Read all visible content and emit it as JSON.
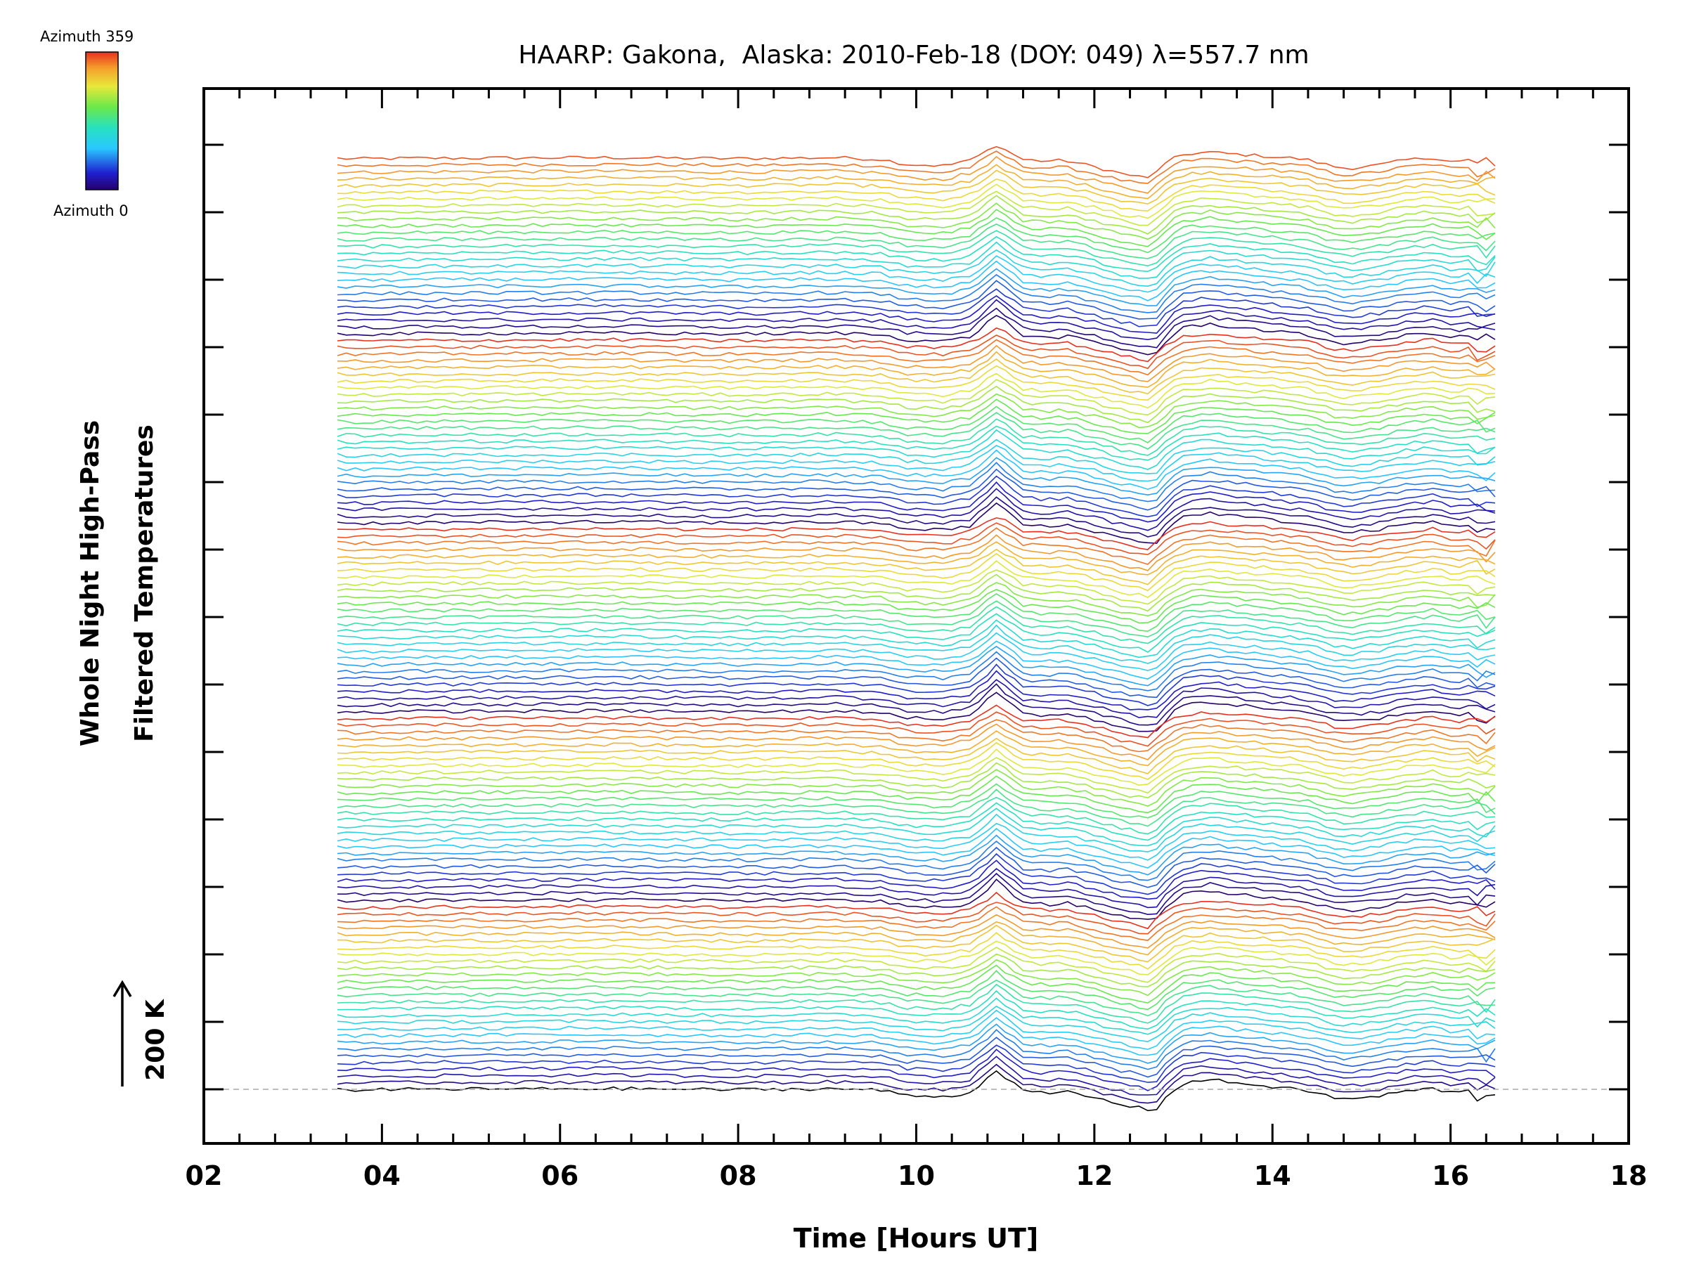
{
  "chart_data": {
    "type": "line",
    "title": "HAARP: Gakona,  Alaska: 2010-Feb-18 (DOY: 049) λ=557.7 nm",
    "xlabel": "Time [Hours UT]",
    "ylabel_line1": "Whole Night High-Pass",
    "ylabel_line2": "Filtered Temperatures",
    "xlim": [
      2,
      18
    ],
    "x_ticks": [
      "02",
      "04",
      "06",
      "08",
      "10",
      "12",
      "14",
      "16",
      "18"
    ],
    "x_tick_values": [
      2,
      4,
      6,
      8,
      10,
      12,
      14,
      16,
      18
    ],
    "scale_label": "200 K",
    "scale_value_K": 200,
    "colorbar": {
      "top_label": "Azimuth 359",
      "bottom_label": "Azimuth 0",
      "min": 0,
      "max": 359
    },
    "stack": {
      "series_count": 139,
      "offset_K": 20,
      "azimuth_period": 28,
      "zero_line": "dashed"
    },
    "time_range": [
      3.5,
      16.5
    ],
    "sample_step_hours": 0.1,
    "base_profile": {
      "x": [
        3.5,
        3.7,
        4.3,
        6.6,
        8.0,
        9.1,
        9.6,
        9.9,
        10.3,
        10.6,
        10.75,
        10.9,
        11.05,
        11.2,
        11.45,
        11.7,
        12.0,
        12.3,
        12.72,
        12.78,
        12.95,
        13.1,
        13.3,
        13.5,
        13.8,
        14.1,
        14.4,
        14.7,
        14.85,
        15.2,
        15.5,
        15.8,
        16.05,
        16.2,
        16.35,
        16.5
      ],
      "y_K": [
        0,
        -2,
        0,
        2,
        -1,
        2,
        -3,
        -18,
        -22,
        -10,
        20,
        55,
        25,
        -5,
        -12,
        -8,
        -25,
        -45,
        -65,
        -35,
        15,
        25,
        32,
        24,
        15,
        5,
        -5,
        -25,
        -30,
        -20,
        -5,
        2,
        -12,
        -5,
        -20,
        -10
      ]
    },
    "variation": {
      "peak1_factor": [
        1.05,
        0.35
      ],
      "peak2_factor": [
        0.9,
        0.35
      ],
      "jitter_K": 10
    },
    "tick_marks": {
      "y_major_count": 15,
      "x_minor_per_major": 4
    },
    "colors": {
      "axes": "#000000",
      "zero_line": "#aaaaaa"
    }
  }
}
